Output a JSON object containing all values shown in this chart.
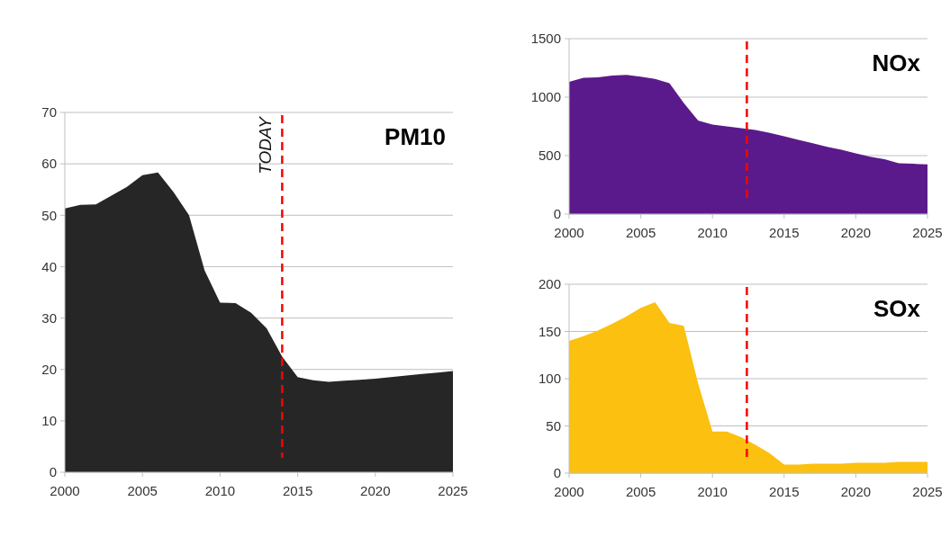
{
  "chart_data": [
    {
      "type": "area",
      "title": "PM10",
      "x": [
        2000,
        2001,
        2002,
        2003,
        2004,
        2005,
        2006,
        2007,
        2008,
        2009,
        2010,
        2011,
        2012,
        2013,
        2014,
        2015,
        2016,
        2017,
        2018,
        2019,
        2020,
        2021,
        2022,
        2023,
        2024,
        2025
      ],
      "series": [
        {
          "color": "#262626",
          "values": [
            51.3,
            52,
            52.1,
            53.8,
            55.5,
            57.8,
            58.3,
            54.5,
            50,
            39.3,
            33,
            32.9,
            31,
            28,
            22.5,
            18.5,
            17.9,
            17.6,
            17.8,
            18,
            18.2,
            18.5,
            18.8,
            19.1,
            19.4,
            19.7
          ]
        }
      ],
      "xlim": [
        2000,
        2025
      ],
      "xticks": [
        2000,
        2005,
        2010,
        2015,
        2020,
        2025
      ],
      "ylim": [
        0,
        70
      ],
      "yticks": [
        0,
        10,
        20,
        30,
        40,
        50,
        60,
        70
      ],
      "grid": "y",
      "ref_lines": [
        {
          "axis": "x",
          "value": 2014,
          "label": "TODAY",
          "color": "#ff0000",
          "line_style": "dashed"
        }
      ]
    },
    {
      "type": "area",
      "title": "NOx",
      "x": [
        2000,
        2001,
        2002,
        2003,
        2004,
        2005,
        2006,
        2007,
        2008,
        2009,
        2010,
        2011,
        2012,
        2013,
        2014,
        2015,
        2016,
        2017,
        2018,
        2019,
        2020,
        2021,
        2022,
        2023,
        2024,
        2025
      ],
      "series": [
        {
          "color": "#5b1a8b",
          "values": [
            1130,
            1165,
            1170,
            1185,
            1190,
            1175,
            1155,
            1120,
            950,
            800,
            765,
            750,
            735,
            720,
            695,
            665,
            635,
            605,
            575,
            550,
            520,
            490,
            470,
            435,
            430,
            425
          ]
        }
      ],
      "xlim": [
        2000,
        2025
      ],
      "xticks": [
        2000,
        2005,
        2010,
        2015,
        2020,
        2025
      ],
      "ylim": [
        0,
        1500
      ],
      "yticks": [
        0,
        500,
        1000,
        1500
      ],
      "grid": "y",
      "ref_lines": [
        {
          "axis": "x",
          "value": 2012.4,
          "color": "#ff0000",
          "line_style": "dashed"
        }
      ]
    },
    {
      "type": "area",
      "title": "SOx",
      "x": [
        2000,
        2001,
        2002,
        2003,
        2004,
        2005,
        2006,
        2007,
        2008,
        2009,
        2010,
        2011,
        2012,
        2013,
        2014,
        2015,
        2016,
        2017,
        2018,
        2019,
        2020,
        2021,
        2022,
        2023,
        2024,
        2025
      ],
      "series": [
        {
          "color": "#fbc010",
          "values": [
            140,
            145,
            151,
            158,
            166,
            175,
            181,
            159,
            156,
            95,
            44,
            44,
            38,
            30,
            21,
            9,
            9,
            10,
            10,
            10,
            11,
            11,
            11,
            12,
            12,
            12
          ]
        }
      ],
      "xlim": [
        2000,
        2025
      ],
      "xticks": [
        2000,
        2005,
        2010,
        2015,
        2020,
        2025
      ],
      "ylim": [
        0,
        200
      ],
      "yticks": [
        0,
        50,
        100,
        150,
        200
      ],
      "grid": "y",
      "ref_lines": [
        {
          "axis": "x",
          "value": 2012.4,
          "color": "#ff0000",
          "line_style": "dashed"
        }
      ]
    }
  ]
}
